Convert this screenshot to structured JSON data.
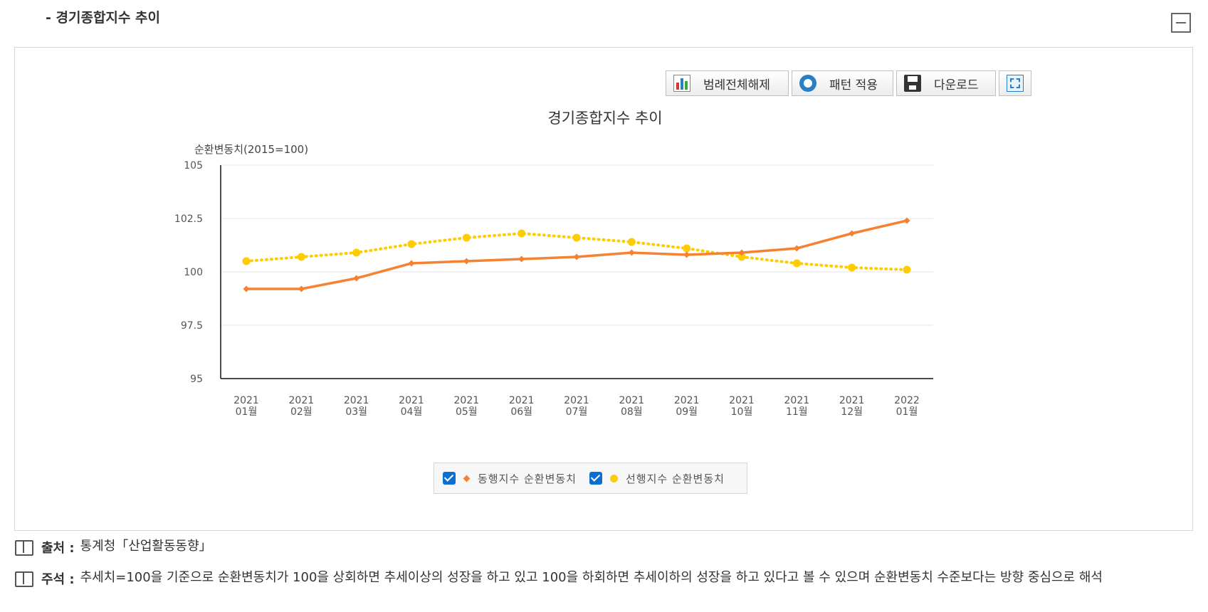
{
  "section": {
    "title": "- 경기종합지수 추이"
  },
  "toolbar": {
    "legend_off_label": "범례전체해제",
    "pattern_label": "패턴 적용",
    "download_label": "다운로드"
  },
  "chart_data": {
    "type": "line",
    "title": "경기종합지수 추이",
    "ylabel": "순환변동치(2015=100)",
    "xlabel": "",
    "ylim": [
      95,
      105
    ],
    "yticks": [
      "95",
      "97.5",
      "100",
      "102.5",
      "105"
    ],
    "yticks_values": [
      95,
      97.5,
      100,
      102.5,
      105
    ],
    "categories": [
      [
        "2021",
        "01월"
      ],
      [
        "2021",
        "02월"
      ],
      [
        "2021",
        "03월"
      ],
      [
        "2021",
        "04월"
      ],
      [
        "2021",
        "05월"
      ],
      [
        "2021",
        "06월"
      ],
      [
        "2021",
        "07월"
      ],
      [
        "2021",
        "08월"
      ],
      [
        "2021",
        "09월"
      ],
      [
        "2021",
        "10월"
      ],
      [
        "2021",
        "11월"
      ],
      [
        "2021",
        "12월"
      ],
      [
        "2022",
        "01월"
      ]
    ],
    "series": [
      {
        "name": "동행지수 순환변동치",
        "color": "#f58232",
        "marker": "diamond",
        "style": "solid",
        "values": [
          99.2,
          99.2,
          99.7,
          100.4,
          100.5,
          100.6,
          100.7,
          100.9,
          100.8,
          100.9,
          101.1,
          101.8,
          102.4
        ]
      },
      {
        "name": "선행지수 순환변동치",
        "color": "#ffcc00",
        "marker": "circle",
        "style": "dotted",
        "values": [
          100.5,
          100.7,
          100.9,
          101.3,
          101.6,
          101.8,
          101.6,
          101.4,
          101.1,
          100.7,
          100.4,
          100.2,
          100.1
        ]
      }
    ],
    "grid": true,
    "legend_position": "bottom-center"
  },
  "notes": {
    "source_label": "출처 :",
    "source_text": "통계청「산업활동동향」",
    "remark_label": "주석 :",
    "remark_text": "추세치=100을 기준으로 순환변동치가 100을 상회하면 추세이상의 성장을 하고 있고 100을 하회하면 추세이하의 성장을 하고 있다고 볼 수 있으며 순환변동치 수준보다는 방향 중심으로 해석"
  }
}
